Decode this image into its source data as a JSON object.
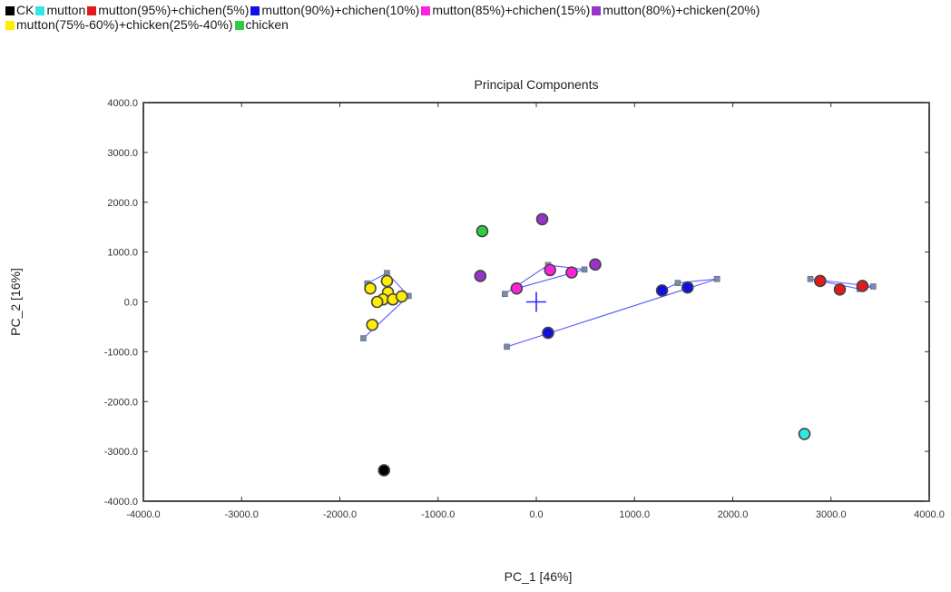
{
  "chart_data": {
    "type": "scatter",
    "title": "Principal Components",
    "xlabel": "PC_1 [46%]",
    "ylabel": "PC_2 [16%]",
    "xlim": [
      -4000,
      4000
    ],
    "ylim": [
      -4000,
      4000
    ],
    "x_ticks": [
      -4000,
      -3000,
      -2000,
      -1000,
      0,
      1000,
      2000,
      3000,
      4000
    ],
    "y_ticks": [
      4000,
      3000,
      2000,
      1000,
      0,
      -1000,
      -2000,
      -3000,
      -4000
    ],
    "x_tick_labels": [
      "-4000.0",
      "-3000.0",
      "-2000.0",
      "-1000.0",
      "0.0",
      "1000.0",
      "2000.0",
      "3000.0",
      "4000.0"
    ],
    "y_tick_labels": [
      "4000.0",
      "3000.0",
      "2000.0",
      "1000.0",
      "0.0",
      "-1000.0",
      "-2000.0",
      "-3000.0",
      "-4000.0"
    ],
    "grid": false,
    "legend_placement": "top",
    "origin_marker": [
      0,
      0
    ],
    "series": [
      {
        "name": "CK",
        "color": "#000000",
        "points": [
          [
            -1550,
            -3380
          ]
        ]
      },
      {
        "name": "mutton",
        "color": "#33e6e6",
        "points": [
          [
            2730,
            -2650
          ]
        ]
      },
      {
        "name": "mutton(95%)+chichen(5%)",
        "color": "#e31a1c",
        "points": [
          [
            2890,
            420
          ],
          [
            3090,
            250
          ],
          [
            3320,
            320
          ]
        ],
        "hull": [
          [
            2790,
            460
          ],
          [
            3430,
            310
          ],
          [
            3290,
            260
          ],
          [
            2890,
            420
          ]
        ]
      },
      {
        "name": "mutton(90%)+chichen(10%)",
        "color": "#1010e0",
        "points": [
          [
            1280,
            230
          ],
          [
            1540,
            290
          ],
          [
            120,
            -620
          ]
        ],
        "hull": [
          [
            -300,
            -900
          ],
          [
            1840,
            460
          ],
          [
            1440,
            380
          ],
          [
            1280,
            230
          ]
        ]
      },
      {
        "name": "mutton(85%)+chichen(15%)",
        "color": "#ff22dd",
        "points": [
          [
            -200,
            270
          ],
          [
            140,
            640
          ],
          [
            360,
            590
          ]
        ],
        "hull": [
          [
            -320,
            160
          ],
          [
            120,
            740
          ],
          [
            490,
            650
          ],
          [
            -200,
            270
          ]
        ]
      },
      {
        "name": "mutton(80%)+chicken(20%)",
        "color": "#9933cc",
        "points": [
          [
            60,
            1660
          ],
          [
            -570,
            520
          ],
          [
            600,
            750
          ]
        ]
      },
      {
        "name": "mutton(75%-60%)+chicken(25%-40%)",
        "color": "#ffee00",
        "points": [
          [
            -1520,
            420
          ],
          [
            -1690,
            270
          ],
          [
            -1510,
            190
          ],
          [
            -1560,
            50
          ],
          [
            -1460,
            50
          ],
          [
            -1370,
            110
          ],
          [
            -1620,
            0
          ],
          [
            -1670,
            -460
          ]
        ],
        "hull": [
          [
            -1720,
            370
          ],
          [
            -1520,
            580
          ],
          [
            -1300,
            120
          ],
          [
            -1760,
            -730
          ]
        ]
      },
      {
        "name": "chicken",
        "color": "#2ecc40",
        "points": [
          [
            -550,
            1420
          ]
        ]
      }
    ]
  }
}
